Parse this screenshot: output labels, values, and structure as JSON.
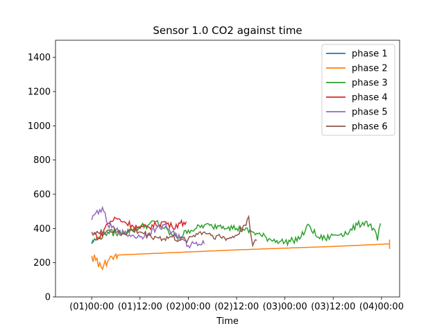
{
  "chart_data": {
    "type": "line",
    "title": "Sensor 1.0 CO2 against  time",
    "xlabel": "Time",
    "ylabel": "",
    "xlim": [
      "(31)15:00",
      "(04)04:30"
    ],
    "ylim": [
      0,
      1500
    ],
    "x_ticks": [
      "(01)00:00",
      "(01)12:00",
      "(02)00:00",
      "(02)12:00",
      "(03)00:00",
      "(03)12:00",
      "(04)00:00"
    ],
    "y_ticks": [
      "0",
      "200",
      "400",
      "600",
      "800",
      "1000",
      "1200",
      "1400"
    ],
    "grid": false,
    "legend_position": "top-right",
    "series": [
      {
        "name": "phase 1",
        "color": "#1f77b4",
        "x": [
          "(01)00:00",
          "(01)00:15",
          "(01)00:30"
        ],
        "y": [
          310,
          330,
          320
        ]
      },
      {
        "name": "phase 2",
        "color": "#ff7f0e",
        "x": [
          "(01)00:00",
          "(01)01:00",
          "(01)02:00",
          "(01)03:00",
          "(01)04:00",
          "(01)05:00",
          "(01)06:00",
          "(01)06:30",
          "(02)12:00",
          "(03)12:00",
          "(04)02:00",
          "(04)02:00",
          "(04)02:00"
        ],
        "y": [
          240,
          215,
          200,
          185,
          210,
          235,
          250,
          245,
          275,
          295,
          310,
          335,
          280
        ]
      },
      {
        "name": "phase 3",
        "color": "#2ca02c",
        "x": [
          "(01)00:00",
          "(01)02:00",
          "(01)04:00",
          "(01)06:00",
          "(01)08:00",
          "(01)10:00",
          "(01)12:00",
          "(01)14:00",
          "(01)16:00",
          "(01)18:00",
          "(01)20:00",
          "(01)22:00",
          "(02)00:00",
          "(02)02:00",
          "(02)04:00",
          "(02)06:00",
          "(02)08:00",
          "(02)10:00",
          "(02)12:00",
          "(02)14:00",
          "(02)16:00",
          "(02)18:00",
          "(02)20:00",
          "(02)22:00",
          "(03)00:00",
          "(03)02:00",
          "(03)04:00",
          "(03)06:00",
          "(03)08:00",
          "(03)10:00",
          "(03)12:00",
          "(03)14:00",
          "(03)16:00",
          "(03)18:00",
          "(03)20:00",
          "(03)22:00",
          "(03)23:00",
          "(03)23:45"
        ],
        "y": [
          320,
          350,
          380,
          370,
          380,
          390,
          410,
          420,
          440,
          400,
          360,
          350,
          390,
          400,
          420,
          410,
          420,
          410,
          400,
          390,
          380,
          360,
          340,
          330,
          320,
          330,
          350,
          420,
          350,
          340,
          360,
          370,
          380,
          420,
          440,
          400,
          330,
          430
        ]
      },
      {
        "name": "phase 4",
        "color": "#d62728",
        "x": [
          "(01)00:30",
          "(01)02:00",
          "(01)03:00",
          "(01)04:00",
          "(01)06:00",
          "(01)08:00",
          "(01)10:00",
          "(01)12:00",
          "(01)14:00",
          "(01)16:00",
          "(01)18:00",
          "(01)20:00",
          "(01)22:00",
          "(01)23:30"
        ],
        "y": [
          370,
          340,
          390,
          430,
          460,
          440,
          420,
          400,
          410,
          420,
          440,
          410,
          430,
          440
        ]
      },
      {
        "name": "phase 5",
        "color": "#9467bd",
        "x": [
          "(01)00:00",
          "(01)01:00",
          "(01)02:00",
          "(01)03:00",
          "(01)04:00",
          "(01)06:00",
          "(01)08:00",
          "(01)10:00",
          "(01)12:00",
          "(01)14:00",
          "(01)16:00",
          "(01)18:00",
          "(01)20:00",
          "(01)22:00",
          "(02)00:00",
          "(02)02:00",
          "(02)04:00"
        ],
        "y": [
          450,
          490,
          510,
          500,
          420,
          390,
          370,
          360,
          350,
          370,
          400,
          420,
          380,
          340,
          300,
          320,
          310
        ]
      },
      {
        "name": "phase 6",
        "color": "#8c564b",
        "x": [
          "(01)00:00",
          "(01)02:00",
          "(01)04:00",
          "(01)06:00",
          "(01)08:00",
          "(01)10:00",
          "(01)12:00",
          "(01)14:00",
          "(01)16:00",
          "(01)18:00",
          "(01)20:00",
          "(01)22:00",
          "(02)00:00",
          "(02)02:00",
          "(02)04:00",
          "(02)06:00",
          "(02)08:00",
          "(02)10:00",
          "(02)12:00",
          "(02)14:00",
          "(02)15:00",
          "(02)16:00",
          "(02)17:00"
        ],
        "y": [
          380,
          370,
          390,
          380,
          370,
          390,
          380,
          360,
          350,
          340,
          350,
          330,
          340,
          370,
          380,
          360,
          350,
          340,
          360,
          420,
          470,
          300,
          330
        ]
      }
    ]
  }
}
